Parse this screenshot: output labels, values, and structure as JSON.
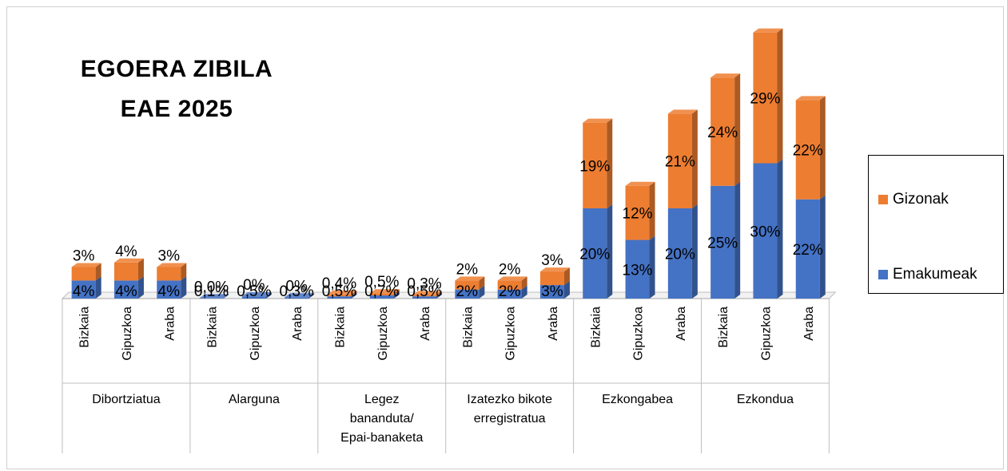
{
  "chart_data": {
    "type": "bar",
    "stacked": true,
    "title": [
      "EGOERA ZIBILA",
      "EAE 2025"
    ],
    "groups": [
      {
        "label": "Dibortziatua",
        "label_lines": [
          "Dibortziatua"
        ],
        "categories": [
          "Bizkaia",
          "Gipuzkoa",
          "Araba"
        ]
      },
      {
        "label": "Alarguna",
        "label_lines": [
          "Alarguna"
        ],
        "categories": [
          "Bizkaia",
          "Gipuzkoa",
          "Araba"
        ]
      },
      {
        "label": "Legez bananduta/ Epai-banaketa",
        "label_lines": [
          "Legez",
          "bananduta/",
          "Epai-banaketa"
        ],
        "categories": [
          "Bizkaia",
          "Gipuzkoa",
          "Araba"
        ]
      },
      {
        "label": "Izatezko bikote erregistratua",
        "label_lines": [
          "Izatezko bikote",
          "erregistratua"
        ],
        "categories": [
          "Bizkaia",
          "Gipuzkoa",
          "Araba"
        ]
      },
      {
        "label": "Ezkongabea",
        "label_lines": [
          "Ezkongabea"
        ],
        "categories": [
          "Bizkaia",
          "Gipuzkoa",
          "Araba"
        ]
      },
      {
        "label": "Ezkondua",
        "label_lines": [
          "Ezkondua"
        ],
        "categories": [
          "Bizkaia",
          "Gipuzkoa",
          "Araba"
        ]
      }
    ],
    "series": [
      {
        "name": "Emakumeak",
        "color": "#4472C4",
        "values": [
          4,
          4,
          4,
          0.1,
          0.5,
          0.3,
          0.5,
          0.7,
          0.5,
          2,
          2,
          3,
          20,
          13,
          20,
          25,
          30,
          22
        ],
        "labels": [
          "4%",
          "4%",
          "4%",
          "0,1%",
          "0,5%",
          "0,3%",
          "0,5%",
          "0,7%",
          "0,5%",
          "2%",
          "2%",
          "3%",
          "20%",
          "13%",
          "20%",
          "25%",
          "30%",
          "22%"
        ]
      },
      {
        "name": "Gizonak",
        "color": "#ED7D31",
        "values": [
          3,
          4,
          3,
          0.0,
          0,
          0,
          0.4,
          0.5,
          0.3,
          2,
          2,
          3,
          19,
          12,
          21,
          24,
          29,
          22
        ],
        "labels": [
          "3%",
          "4%",
          "3%",
          "0,0%",
          "0%",
          "0%",
          "0,4%",
          "0,5%",
          "0,3%",
          "2%",
          "2%",
          "3%",
          "19%",
          "12%",
          "21%",
          "24%",
          "29%",
          "22%"
        ]
      }
    ],
    "legend_position": "right",
    "grid": false
  },
  "legend": {
    "gizonak": "Gizonak",
    "emakumeak": "Emakumeak"
  }
}
